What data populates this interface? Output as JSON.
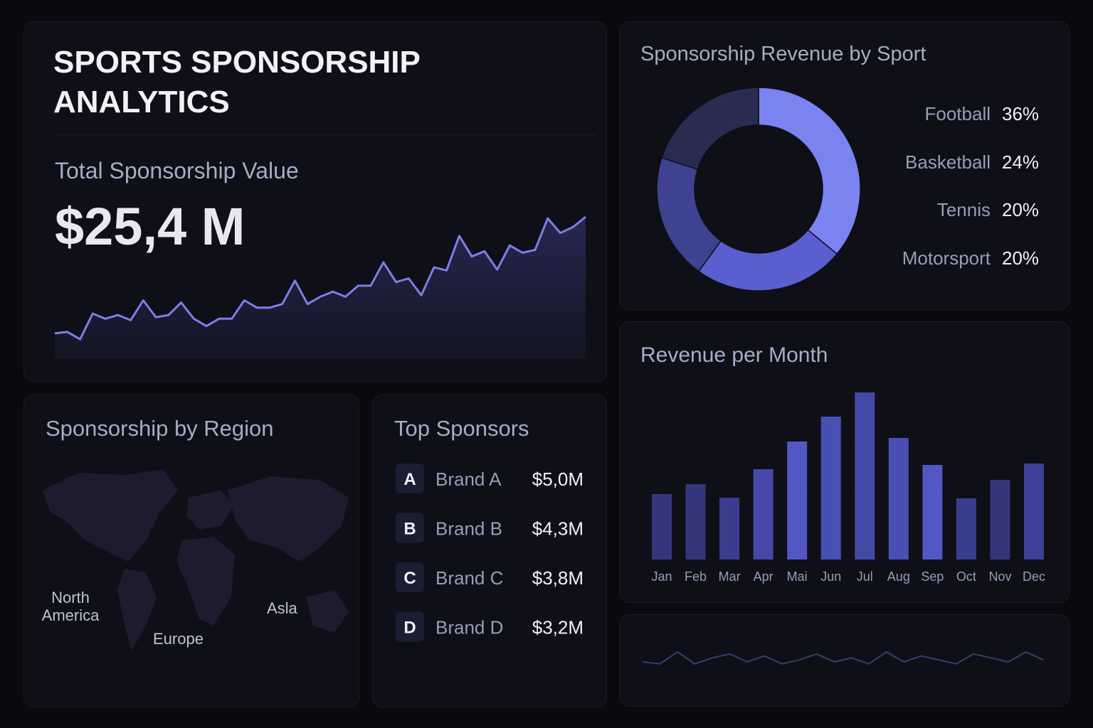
{
  "title": "SPORTS SPONSORSHIP ANALYTICS",
  "kpi": {
    "label": "Total Sponsorship Value",
    "value": "$25,4 M"
  },
  "region": {
    "title": "Sponsorship by Region",
    "labels": [
      "North America",
      "Europe",
      "Asla"
    ]
  },
  "sponsors": {
    "title": "Top Sponsors",
    "rows": [
      {
        "letter": "A",
        "name": "Brand A",
        "value": "$5,0M"
      },
      {
        "letter": "B",
        "name": "Brand B",
        "value": "$4,3M"
      },
      {
        "letter": "C",
        "name": "Brand C",
        "value": "$3,8M"
      },
      {
        "letter": "D",
        "name": "Brand D",
        "value": "$3,2M"
      }
    ]
  },
  "chart_data": [
    {
      "type": "line",
      "color": "#7b7fe6",
      "values": [
        35,
        37,
        27,
        62,
        55,
        60,
        53,
        80,
        57,
        60,
        77,
        55,
        45,
        55,
        55,
        80,
        70,
        70,
        75,
        107,
        75,
        85,
        92,
        85,
        100,
        100,
        132,
        105,
        110,
        87,
        125,
        121,
        168,
        140,
        147,
        122,
        155,
        145,
        149,
        192,
        172,
        180,
        194
      ]
    },
    {
      "type": "pie",
      "title": "Sponsorship Revenue by Sport",
      "categories": [
        "Football",
        "Basketball",
        "Tennis",
        "Motorsport"
      ],
      "values": [
        36,
        24,
        20,
        20
      ],
      "value_labels": [
        "36%",
        "24%",
        "20%",
        "20%"
      ],
      "colors": [
        "#7b83f0",
        "#5a5fd0",
        "#3e4290",
        "#2a2b50"
      ]
    },
    {
      "type": "bar",
      "title": "Revenue per Month",
      "categories": [
        "Jan",
        "Feb",
        "Mar",
        "Apr",
        "Mai",
        "Jun",
        "Jul",
        "Aug",
        "Sep",
        "Oct",
        "Nov",
        "Dec"
      ],
      "values": [
        92,
        106,
        87,
        127,
        166,
        201,
        235,
        171,
        133,
        86,
        112,
        135
      ],
      "colors": [
        "#34367c",
        "#34367c",
        "#3a3d8e",
        "#4448a6",
        "#5257c4",
        "#4a4fb4",
        "#4449a8",
        "#4a4fb4",
        "#5257c4",
        "#3a3d8e",
        "#34367c",
        "#3e4198"
      ]
    },
    {
      "type": "line",
      "color": "#3c3d6a",
      "values": [
        10,
        8,
        20,
        8,
        14,
        18,
        10,
        16,
        8,
        12,
        18,
        10,
        14,
        8,
        20,
        10,
        16,
        12,
        8,
        18,
        14,
        10,
        20,
        12
      ]
    }
  ]
}
